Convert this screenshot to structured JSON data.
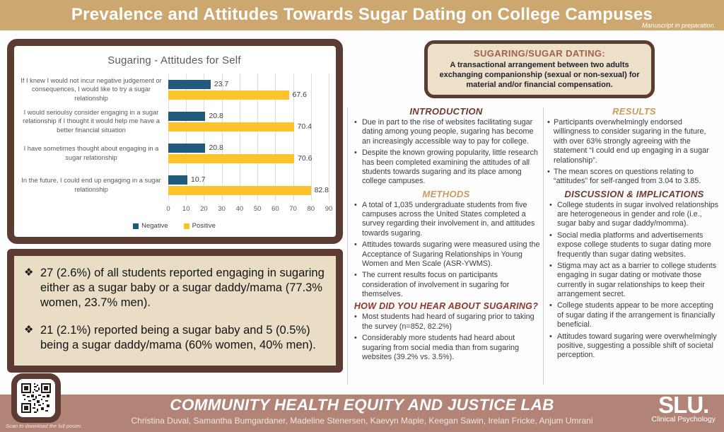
{
  "header": {
    "title": "Prevalence and Attitudes Towards Sugar Dating on College Campuses",
    "note": "Manuscript in preparation."
  },
  "chart_data": {
    "type": "bar",
    "orientation": "horizontal",
    "title": "Sugaring - Attitudes for Self",
    "categories": [
      "If I knew I would not incur negative judgement or consequences, I would like to try a sugar relationship",
      "I would serioulsy consider engaging in a sugar relationship if I thought it would help me have a better financial situation",
      "I have sometimes thought about engaging in a sugar relationship",
      "In the future, I could end up engaging in a sugar relationship"
    ],
    "series": [
      {
        "name": "Negative",
        "color": "#20597B",
        "values": [
          23.7,
          20.8,
          20.8,
          10.7
        ]
      },
      {
        "name": "Positive",
        "color": "#FDC32B",
        "values": [
          67.6,
          70.4,
          70.6,
          82.8
        ]
      }
    ],
    "xlim": [
      0,
      90
    ],
    "xticks": [
      0,
      10,
      20,
      30,
      40,
      50,
      60,
      70,
      80,
      90
    ],
    "grid": true,
    "legend_position": "bottom"
  },
  "findings": {
    "items": [
      "27 (2.6%) of all students reported engaging in sugaring either as a sugar baby or a sugar daddy/mama (77.3% women, 23.7% men).",
      "21 (2.1%) reported being a sugar baby and 5 (0.5%) being a sugar daddy/mama (60% women, 40% men)."
    ]
  },
  "definition": {
    "title": "SUGARING/SUGAR DATING:",
    "body": "A transactional arrangement between two adults exchanging companionship (sexual or non-sexual) for material and/or financial compensation."
  },
  "sections": {
    "introduction": {
      "heading": "INTRODUCTION",
      "bullets": [
        "Due in part to the rise of websites facilitating sugar dating among young people, sugaring has become an increasingly accessible way to pay for college.",
        "Despite the known growing popularity, little research has been completed examining the attitudes of all students towards sugaring and its place among college campuses."
      ]
    },
    "methods": {
      "heading": "METHODS",
      "bullets": [
        "A total of 1,035 undergraduate  students from five campuses across the United States completed a survey regarding their involvement in, and attitudes towards sugaring.",
        "Attitudes towards sugaring were measured using the Acceptance of Sugaring Relationships in Young Women and Men Scale (ASR-YWMS).",
        "The current results focus on participants consideration of involvement in sugaring for themselves."
      ]
    },
    "hear": {
      "heading": "HOW DID YOU HEAR ABOUT SUGARING?",
      "bullets": [
        "Most students had heard of sugaring prior to taking the survey (n=852, 82.2%)",
        "Considerably more students had heard about sugaring from social media than from sugaring websites (39.2% vs. 3.5%)."
      ]
    },
    "results": {
      "heading": "RESULTS",
      "bullets": [
        "Participants overwhelmingly endorsed willingness to consider sugaring in the future, with over 63% strongly agreeing with the statement “I could end up engaging in a sugar relationship”.",
        "The mean scores on questions relating to “attitudes” for self-ranged from 3.04 to 3.85."
      ]
    },
    "discussion": {
      "heading": "DISCUSSION & IMPLICATIONS",
      "bullets": [
        "College students in sugar involved relationships are heterogeneous in gender and role (i.e., sugar baby and sugar daddy/momma).",
        "Social media platforms and advertisements expose college students to sugar dating more frequently than sugar dating websites.",
        "Stigma may act as a barrier to college students engaging in sugar dating or motivate those currently in sugar relationships to keep their arrangement secret.",
        "College students appear to be more accepting of sugar dating if the arrangement is financially beneficial.",
        "Attitudes toward sugaring were overwhelmingly positive, suggesting a possible shift of societal perception."
      ]
    }
  },
  "footer": {
    "lab_title": "COMMUNITY HEALTH EQUITY AND JUSTICE LAB",
    "authors": "Christina Duval, Samantha Bumgardaner, Madeline Stenersen, Kaevyn Maple, Keegan Sawin, Irelan Fricke, Anjum Umrani",
    "qr_caption": "Scan to download the full poster.",
    "logo_text": "SLU.",
    "logo_subtext": "Clinical Psychology"
  },
  "colors": {
    "band_tan": "#CDA770",
    "panel_brown": "#5C3B32",
    "findings_bg": "#E9DDC5",
    "definition_bg": "#EDE0C8",
    "footer_mauve": "#B28377",
    "heading_maroon": "#6F3A2B",
    "heading_gold": "#C79C5B",
    "heading_red": "#8E3528",
    "bar_negative": "#20597B",
    "bar_positive": "#FDC32B"
  }
}
